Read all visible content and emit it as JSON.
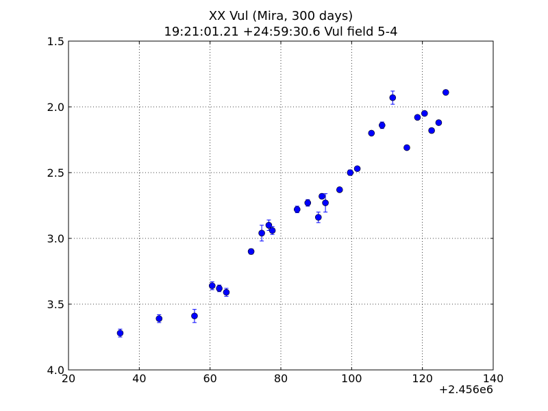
{
  "chart_data": {
    "type": "scatter",
    "title": "XX Vul (Mira, 300 days)",
    "subtitle": "19:21:01.21 +24:59:30.6 Vul field 5-4",
    "xlabel": "",
    "ylabel": "",
    "x_offset_label": "+2.456e6",
    "xlim": [
      20,
      140
    ],
    "ylim": [
      4.0,
      1.5
    ],
    "y_inverted": true,
    "grid": true,
    "x_ticks": [
      20,
      40,
      60,
      80,
      100,
      120,
      140
    ],
    "x_tick_labels": [
      "20",
      "40",
      "60",
      "80",
      "100",
      "120",
      "140"
    ],
    "y_ticks": [
      1.5,
      2.0,
      2.5,
      3.0,
      3.5,
      4.0
    ],
    "y_tick_labels": [
      "1.5",
      "2.0",
      "2.5",
      "3.0",
      "3.5",
      "4.0"
    ],
    "marker_color": "#0000ff",
    "points": [
      {
        "x": 34.6,
        "y": 3.72,
        "err": 0.03
      },
      {
        "x": 45.6,
        "y": 3.61,
        "err": 0.03
      },
      {
        "x": 55.6,
        "y": 3.59,
        "err": 0.05
      },
      {
        "x": 60.6,
        "y": 3.36,
        "err": 0.03
      },
      {
        "x": 62.6,
        "y": 3.38,
        "err": 0.025
      },
      {
        "x": 64.6,
        "y": 3.41,
        "err": 0.03
      },
      {
        "x": 71.6,
        "y": 3.1,
        "err": 0.02
      },
      {
        "x": 74.6,
        "y": 2.96,
        "err": 0.06
      },
      {
        "x": 76.6,
        "y": 2.9,
        "err": 0.04
      },
      {
        "x": 77.6,
        "y": 2.94,
        "err": 0.03
      },
      {
        "x": 84.6,
        "y": 2.78,
        "err": 0.025
      },
      {
        "x": 87.6,
        "y": 2.73,
        "err": 0.025
      },
      {
        "x": 90.6,
        "y": 2.84,
        "err": 0.04
      },
      {
        "x": 91.6,
        "y": 2.68,
        "err": 0.015
      },
      {
        "x": 92.6,
        "y": 2.73,
        "err": 0.07
      },
      {
        "x": 96.6,
        "y": 2.63,
        "err": 0.015
      },
      {
        "x": 99.6,
        "y": 2.5,
        "err": 0.02
      },
      {
        "x": 101.6,
        "y": 2.47,
        "err": 0.015
      },
      {
        "x": 105.6,
        "y": 2.2,
        "err": 0.015
      },
      {
        "x": 108.6,
        "y": 2.14,
        "err": 0.025
      },
      {
        "x": 111.6,
        "y": 1.93,
        "err": 0.05
      },
      {
        "x": 115.6,
        "y": 2.31,
        "err": 0.015
      },
      {
        "x": 118.6,
        "y": 2.08,
        "err": 0.015
      },
      {
        "x": 120.6,
        "y": 2.05,
        "err": 0.015
      },
      {
        "x": 122.6,
        "y": 2.18,
        "err": 0.015
      },
      {
        "x": 124.6,
        "y": 2.12,
        "err": 0.015
      },
      {
        "x": 126.6,
        "y": 1.89,
        "err": 0.01
      }
    ]
  }
}
